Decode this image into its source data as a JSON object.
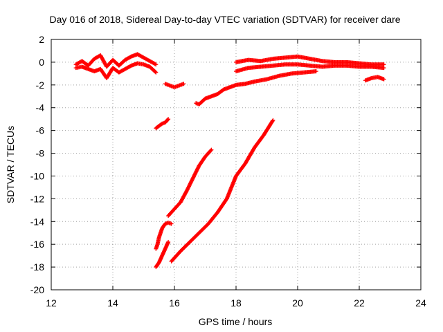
{
  "chart_data": {
    "type": "scatter",
    "title": "Day 016 of 2018, Sidereal Day-to-day VTEC variation (SDTVAR) for receiver dare",
    "xlabel": "GPS time / hours",
    "ylabel": "SDTVAR / TECUs",
    "xlim": [
      12,
      24
    ],
    "ylim": [
      -20,
      2
    ],
    "xticks": [
      12,
      14,
      16,
      18,
      20,
      22,
      24
    ],
    "yticks": [
      2,
      0,
      -2,
      -4,
      -6,
      -8,
      -10,
      -12,
      -14,
      -16,
      -18,
      -20
    ],
    "grid": true,
    "marker": "+",
    "color": "#ff0000",
    "segments": [
      {
        "x": [
          12.8,
          13.0,
          13.2,
          13.4,
          13.6,
          13.8,
          14.0,
          14.2,
          14.4,
          14.6,
          14.8,
          15.0,
          15.2,
          15.4
        ],
        "y": [
          -0.2,
          0.1,
          -0.3,
          0.3,
          0.6,
          -0.4,
          0.2,
          -0.3,
          0.2,
          0.5,
          0.7,
          0.4,
          0.1,
          -0.2
        ]
      },
      {
        "x": [
          12.8,
          13.0,
          13.2,
          13.4,
          13.6,
          13.8,
          14.0,
          14.2,
          14.4,
          14.6,
          14.8,
          15.0,
          15.2,
          15.4
        ],
        "y": [
          -0.5,
          -0.4,
          -0.6,
          -0.8,
          -0.6,
          -1.4,
          -0.5,
          -0.9,
          -0.6,
          -0.3,
          -0.1,
          -0.2,
          -0.4,
          -0.9
        ]
      },
      {
        "x": [
          15.4,
          15.5,
          15.6,
          15.7,
          15.8
        ],
        "y": [
          -5.8,
          -5.6,
          -5.4,
          -5.3,
          -5.0
        ]
      },
      {
        "x": [
          15.7,
          15.8,
          15.9,
          16.0,
          16.1,
          16.2,
          16.3
        ],
        "y": [
          -1.9,
          -2.0,
          -2.1,
          -2.2,
          -2.1,
          -2.0,
          -1.9
        ]
      },
      {
        "x": [
          15.4,
          15.45,
          15.5,
          15.55,
          15.6,
          15.65,
          15.7,
          15.8,
          15.9
        ],
        "y": [
          -16.4,
          -16.0,
          -15.4,
          -15.0,
          -14.6,
          -14.4,
          -14.2,
          -14.1,
          -14.2
        ]
      },
      {
        "x": [
          15.4,
          15.5,
          15.6,
          15.7,
          15.8
        ],
        "y": [
          -18.0,
          -17.6,
          -17.0,
          -16.4,
          -15.8
        ]
      },
      {
        "x": [
          15.8,
          16.0,
          16.2,
          16.4,
          16.6,
          16.8,
          17.0,
          17.2
        ],
        "y": [
          -13.5,
          -12.9,
          -12.3,
          -11.3,
          -10.2,
          -9.1,
          -8.3,
          -7.7
        ]
      },
      {
        "x": [
          15.9,
          16.2,
          16.5,
          16.8,
          17.1,
          17.4,
          17.7,
          18.0,
          18.3,
          18.6,
          18.9,
          19.2
        ],
        "y": [
          -17.5,
          -16.6,
          -15.8,
          -15.0,
          -14.2,
          -13.2,
          -12.0,
          -10.0,
          -8.9,
          -7.5,
          -6.4,
          -5.1
        ]
      },
      {
        "x": [
          16.7,
          16.8,
          17.0,
          17.2,
          17.4,
          17.6,
          17.8,
          18.0,
          18.3,
          18.6,
          19.0,
          19.4,
          19.8,
          20.2,
          20.6
        ],
        "y": [
          -3.6,
          -3.7,
          -3.2,
          -3.0,
          -2.8,
          -2.4,
          -2.2,
          -2.0,
          -1.9,
          -1.7,
          -1.5,
          -1.2,
          -1.0,
          -0.9,
          -0.8
        ]
      },
      {
        "x": [
          18.0,
          18.4,
          18.8,
          19.2,
          19.6,
          20.0,
          20.4,
          20.8,
          21.2,
          21.6,
          22.0,
          22.4,
          22.8
        ],
        "y": [
          -0.8,
          -0.5,
          -0.4,
          -0.3,
          -0.2,
          -0.2,
          -0.3,
          -0.4,
          -0.3,
          -0.3,
          -0.4,
          -0.4,
          -0.5
        ]
      },
      {
        "x": [
          18.0,
          18.4,
          18.8,
          19.2,
          19.6,
          20.0,
          20.4,
          20.8,
          21.2,
          21.6,
          22.0,
          22.4,
          22.8
        ],
        "y": [
          0.0,
          0.2,
          0.1,
          0.3,
          0.4,
          0.5,
          0.3,
          0.1,
          0.0,
          0.0,
          -0.1,
          -0.2,
          -0.2
        ]
      },
      {
        "x": [
          22.2,
          22.4,
          22.6,
          22.8
        ],
        "y": [
          -1.6,
          -1.4,
          -1.3,
          -1.5
        ]
      }
    ]
  }
}
